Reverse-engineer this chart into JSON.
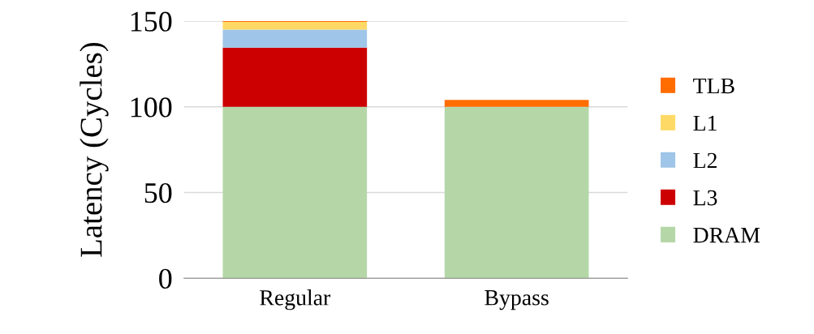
{
  "chart_data": {
    "type": "bar",
    "stacked": true,
    "ylabel": "Latency (Cycles)",
    "categories": [
      "Regular",
      "Bypass"
    ],
    "series": [
      {
        "name": "DRAM",
        "color": "#b5d7a8",
        "values": [
          100,
          100
        ]
      },
      {
        "name": "L3",
        "color": "#cc0000",
        "values": [
          34.5,
          0
        ]
      },
      {
        "name": "L2",
        "color": "#9fc5e8",
        "values": [
          10.5,
          0
        ]
      },
      {
        "name": "L1",
        "color": "#ffd966",
        "values": [
          4.5,
          0
        ]
      },
      {
        "name": "TLB",
        "color": "#ff6d01",
        "values": [
          0.5,
          4
        ]
      }
    ],
    "ylim": [
      0,
      150
    ],
    "yticks": [
      0,
      50,
      100,
      150
    ],
    "grid": "y",
    "legend": "right"
  }
}
